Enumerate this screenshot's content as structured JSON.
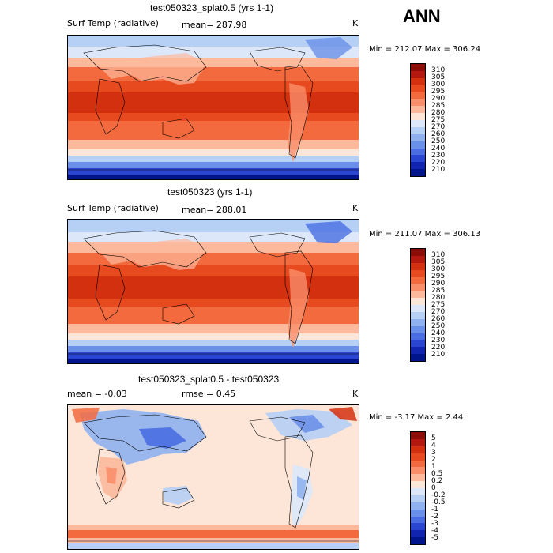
{
  "season": "ANN",
  "panels": [
    {
      "title": "test050323_splat0.5 (yrs 1-1)",
      "left_label": "Surf Temp (radiative)",
      "mid_label": "mean= 287.98",
      "units": "K",
      "minmax": "Min = 212.07 Max = 306.24",
      "colorbar": {
        "labels": [
          "310",
          "305",
          "300",
          "295",
          "290",
          "285",
          "280",
          "275",
          "270",
          "260",
          "250",
          "240",
          "230",
          "220",
          "210"
        ],
        "colors": [
          "#8b0d08",
          "#b3180f",
          "#d3300f",
          "#e84a1f",
          "#f36a3e",
          "#f98f6a",
          "#fcb99c",
          "#fde6d8",
          "#dce8fa",
          "#b6cff5",
          "#8fb1ef",
          "#6b90e9",
          "#4a6ee2",
          "#2a45d0",
          "#1124b0",
          "#00148c"
        ]
      }
    },
    {
      "title": "test050323 (yrs 1-1)",
      "left_label": "Surf Temp (radiative)",
      "mid_label": "mean= 288.01",
      "units": "K",
      "minmax": "Min = 211.07 Max = 306.13",
      "colorbar": {
        "labels": [
          "310",
          "305",
          "300",
          "295",
          "290",
          "285",
          "280",
          "275",
          "270",
          "260",
          "250",
          "240",
          "230",
          "220",
          "210"
        ],
        "colors": [
          "#8b0d08",
          "#b3180f",
          "#d3300f",
          "#e84a1f",
          "#f36a3e",
          "#f98f6a",
          "#fcb99c",
          "#fde6d8",
          "#dce8fa",
          "#b6cff5",
          "#8fb1ef",
          "#6b90e9",
          "#4a6ee2",
          "#2a45d0",
          "#1124b0",
          "#00148c"
        ]
      }
    },
    {
      "title": "test050323_splat0.5 - test050323",
      "left_label": "mean =   -0.03",
      "mid_label": "rmse =    0.45",
      "units": "K",
      "minmax": "Min =  -3.17 Max =    2.44",
      "colorbar": {
        "labels": [
          "5",
          "4",
          "3",
          "2",
          "1",
          "0.5",
          "0.2",
          "0",
          "-0.2",
          "-0.5",
          "-1",
          "-2",
          "-3",
          "-4",
          "-5"
        ],
        "colors": [
          "#8b0d08",
          "#b3180f",
          "#d3300f",
          "#e84a1f",
          "#f36a3e",
          "#f98f6a",
          "#fcb99c",
          "#fde6d8",
          "#dce8fa",
          "#b6cff5",
          "#8fb1ef",
          "#6b90e9",
          "#4a6ee2",
          "#2a45d0",
          "#1124b0",
          "#00148c"
        ]
      }
    }
  ]
}
